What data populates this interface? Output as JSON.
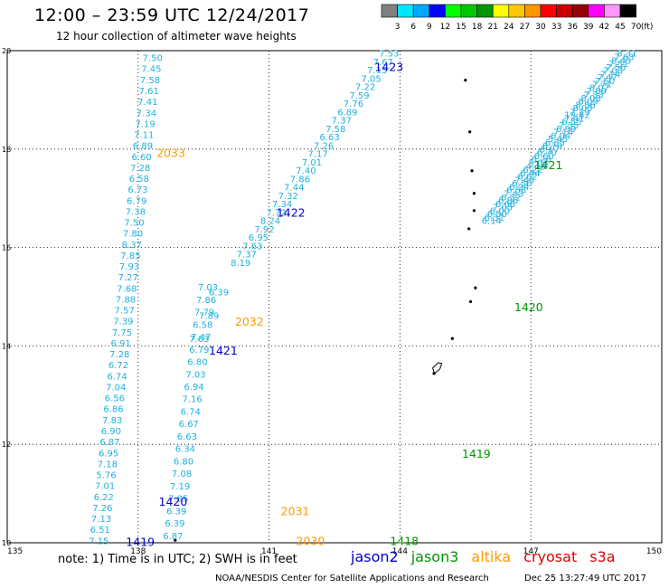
{
  "title": "12:00 – 23:59 UTC 12/24/2017",
  "subtitle": "12 hour collection of altimeter wave heights",
  "colorbar": {
    "ticks": [
      "3",
      "6",
      "9",
      "12",
      "15",
      "18",
      "21",
      "24",
      "27",
      "30",
      "33",
      "36",
      "39",
      "42",
      "45",
      "70"
    ],
    "unit": "(ft)",
    "colors": [
      "#808080",
      "#00e5ff",
      "#00a8ff",
      "#0000ff",
      "#00ff00",
      "#00c800",
      "#009600",
      "#ffff00",
      "#ffc800",
      "#ff9600",
      "#ff0000",
      "#c80000",
      "#960000",
      "#ff00ff",
      "#ff96ff",
      "#000000"
    ]
  },
  "note": "note: 1) Time is in UTC; 2) SWH is in feet",
  "satellites": [
    {
      "name": "jason2",
      "color": "#0000cc"
    },
    {
      "name": "jason3",
      "color": "#009600"
    },
    {
      "name": "altika",
      "color": "#ff9900"
    },
    {
      "name": "cryosat",
      "color": "#dd0000"
    },
    {
      "name": "s3a",
      "color": "#dd0000"
    }
  ],
  "credit": "NOAA/NESDIS Center for Satellite Applications and Research",
  "timestamp": "Dec 25 13:27:49 UTC 2017",
  "chart_data": {
    "type": "scatter",
    "xlim": [
      135,
      150
    ],
    "ylim": [
      10,
      20
    ],
    "x_ticks": [
      "135",
      "138",
      "141",
      "144",
      "147",
      "150"
    ],
    "y_ticks": [
      "10",
      "12",
      "14",
      "16",
      "18",
      "20"
    ],
    "grid": true,
    "value_color": "#1fb0e0",
    "tracks": [
      {
        "lon_start": 138.33,
        "lon_end": 137.1,
        "lat_start": 19.86,
        "lat_end": 10.05,
        "values": [
          "7.50",
          "7.45",
          "7.58",
          "7.61",
          "7.41",
          "7.34",
          "7.19",
          "7.11",
          "6.89",
          "6.60",
          "7.28",
          "6.58",
          "6.73",
          "6.79",
          "7.38",
          "7.50",
          "7.80",
          "8.37",
          "7.85",
          "7.93",
          "7.27",
          "7.68",
          "7.88",
          "7.57",
          "7.39",
          "7.75",
          "6.91",
          "7.28",
          "6.72",
          "6.74",
          "7.04",
          "6.56",
          "6.86",
          "7.83",
          "6.90",
          "6.87",
          "6.95",
          "7.18",
          "5.76",
          "7.01",
          "6.22",
          "7.26",
          "7.13",
          "6.51",
          "7.15"
        ]
      },
      {
        "lon_start": 139.6,
        "lon_end": 138.8,
        "lat_start": 15.2,
        "lat_end": 10.15,
        "values": [
          "7.03",
          "7.86",
          "7.79",
          "6.58",
          "7.47",
          "6.79",
          "6.80",
          "7.03",
          "6.94",
          "7.16",
          "6.74",
          "6.67",
          "6.63",
          "6.34",
          "6.80",
          "7.08",
          "7.19",
          "7.85",
          "6.39",
          "6.39",
          "6.87"
        ]
      },
      {
        "lon_start": 139.4,
        "lon_end": 139.85,
        "lat_start": 14.15,
        "lat_end": 15.1,
        "values": [
          "7.63",
          "7.89",
          "6.39"
        ]
      },
      {
        "lon_start": 143.75,
        "lon_end": 140.35,
        "lat_start": 19.95,
        "lat_end": 15.7,
        "values": [
          "7.53",
          "7.67",
          "7.15",
          "7.05",
          "7.22",
          "7.59",
          "7.76",
          "6.89",
          "7.37",
          "7.58",
          "6.63",
          "7.26",
          "7.17",
          "7.01",
          "7.40",
          "7.86",
          "7.44",
          "7.32",
          "7.34",
          "7.72",
          "8.24",
          "7.92",
          "6.95",
          "7.63",
          "7.37",
          "8.19"
        ]
      },
      {
        "lon_start": 149.2,
        "lon_end": 146.1,
        "lat_start": 19.95,
        "lat_end": 16.55,
        "values": [
          "8.31",
          "7.63",
          "8.45",
          "7.51",
          "7.56",
          "7.03",
          "7.14",
          "7.47",
          "7.50",
          "7.71",
          "8.07",
          "7.89",
          "7.33",
          "8.08",
          "8.09",
          "8.56",
          "8.05",
          "7.19",
          "19.82",
          "7.41",
          "6.55",
          "7.35",
          "6.99",
          "7.14",
          "6.04",
          "5.45",
          "6.35",
          "6.79",
          "6.17",
          "6.70",
          "6.60",
          "6.26",
          "5.03",
          "4.48",
          "6.22",
          "6.44",
          "6.62",
          "7.45",
          "6.56",
          "6.24",
          "6.58",
          "7.43",
          "6.32",
          "6.86",
          "6.66",
          "7.05",
          "6.00",
          "6.50",
          "6.31",
          "6.14"
        ]
      }
    ],
    "labels": [
      {
        "text": "1423",
        "color": "#0000cc",
        "lon": 143.75,
        "lat": 19.68
      },
      {
        "text": "2033",
        "color": "#ff9900",
        "lon": 138.75,
        "lat": 17.93
      },
      {
        "text": "1421",
        "color": "#009600",
        "lon": 147.4,
        "lat": 17.68
      },
      {
        "text": "1422",
        "color": "#0000cc",
        "lon": 141.5,
        "lat": 16.72
      },
      {
        "text": "1420",
        "color": "#009600",
        "lon": 146.95,
        "lat": 14.8
      },
      {
        "text": "2032",
        "color": "#ff9900",
        "lon": 140.55,
        "lat": 14.5
      },
      {
        "text": "1421",
        "color": "#0000cc",
        "lon": 139.95,
        "lat": 13.92
      },
      {
        "text": "1419",
        "color": "#009600",
        "lon": 145.75,
        "lat": 11.82
      },
      {
        "text": "1420",
        "color": "#0000cc",
        "lon": 138.8,
        "lat": 10.85
      },
      {
        "text": "2031",
        "color": "#ff9900",
        "lon": 141.6,
        "lat": 10.65
      },
      {
        "text": "2030",
        "color": "#ff9900",
        "lon": 141.95,
        "lat": 10.05
      },
      {
        "text": "1418",
        "color": "#009600",
        "lon": 144.1,
        "lat": 10.05
      },
      {
        "text": "1419",
        "color": "#0000cc",
        "lon": 138.05,
        "lat": 10.03
      }
    ]
  }
}
